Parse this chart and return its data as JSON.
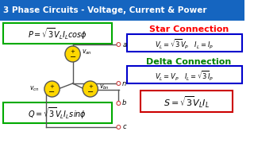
{
  "title": "3 Phase Circuits - Voltage, Current & Power",
  "title_bg": "#1565C0",
  "title_color": "#FFFFFF",
  "bg_color": "#FFFFFF",
  "formula_P": "P = \\sqrt{3}V_L I_L cos\\phi",
  "formula_Q": "Q = \\sqrt{3}V_L I_L sin\\phi",
  "formula_S": "S = \\sqrt{3}V_L I_L",
  "star_title": "Star Connection",
  "star_formula": "V_L = \\sqrt{3}V_P \\quad I_L = I_P",
  "delta_title": "Delta Connection",
  "delta_formula": "V_L = V_P \\quad I_L = \\sqrt{3}I_P",
  "star_color": "#FF0000",
  "delta_color": "#008000",
  "box_green": "#00AA00",
  "box_blue": "#0000CC",
  "box_red": "#CC0000",
  "circuit_line_color": "#555555",
  "source_color": "#FFD700",
  "source_border": "#555555",
  "label_color": "#000000",
  "node_color": "#FF9999"
}
